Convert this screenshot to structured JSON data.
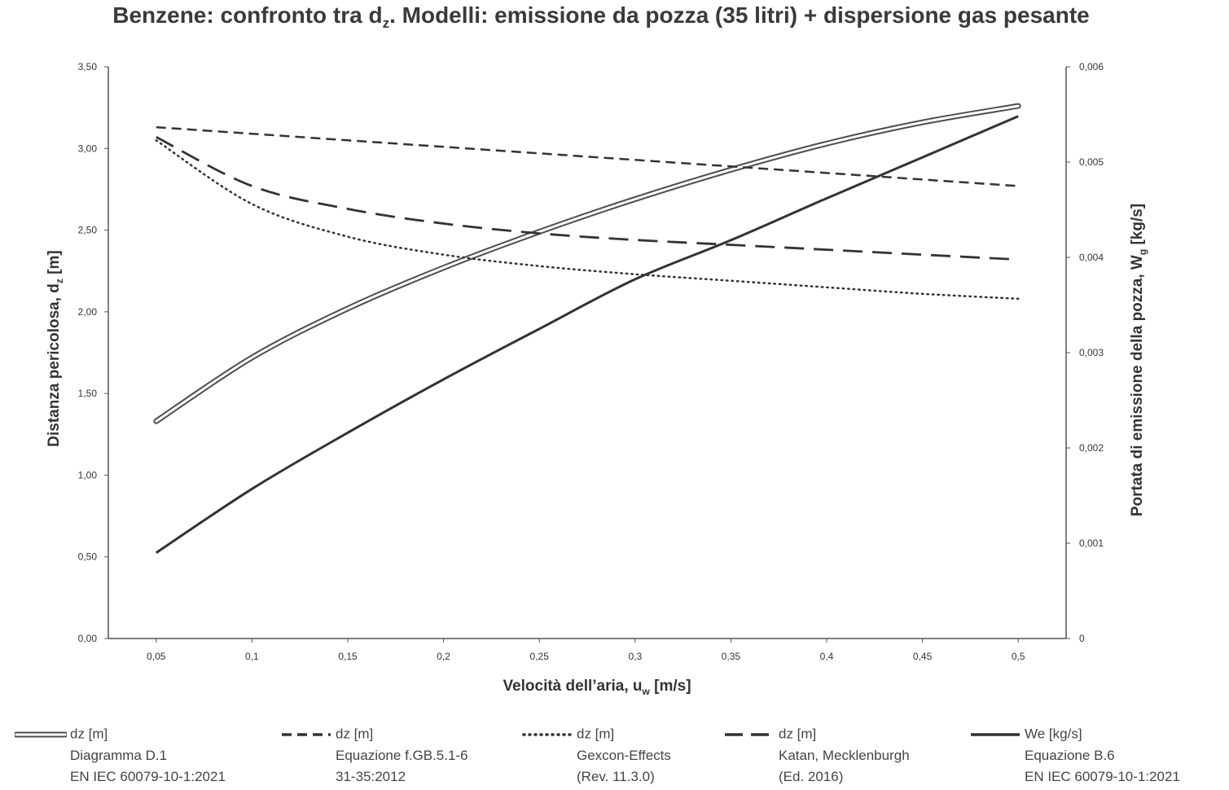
{
  "chart_data": {
    "type": "line",
    "title": {
      "pre": "Benzene: confronto tra d",
      "sub": "z",
      "post": ". Modelli: emissione da pozza (35 litri) + dispersione gas pesante"
    },
    "xlabel": {
      "pre": "Velocità dell’aria, u",
      "sub": "w",
      "post": " [m/s]"
    },
    "ylabel_left": {
      "pre": "Distanza pericolosa, d",
      "sub": "z",
      "post": " [m]"
    },
    "ylabel_right": {
      "pre": "Portata di emissione della pozza, W",
      "sub": "g",
      "post": " [kg/s]"
    },
    "x": [
      0.05,
      0.1,
      0.15,
      0.2,
      0.25,
      0.3,
      0.35,
      0.4,
      0.45,
      0.5
    ],
    "x_tick_labels": [
      "0,05",
      "0,1",
      "0,15",
      "0,2",
      "0,25",
      "0,3",
      "0,35",
      "0,4",
      "0,45",
      "0,5"
    ],
    "ylim_left": [
      0,
      3.5
    ],
    "y_left_ticks": [
      0,
      0.5,
      1,
      1.5,
      2,
      2.5,
      3,
      3.5
    ],
    "y_left_tick_labels": [
      "0,00",
      "0,50",
      "1,00",
      "1,50",
      "2,00",
      "2,50",
      "3,00",
      "3,50"
    ],
    "ylim_right": [
      0,
      0.006
    ],
    "y_right_ticks": [
      0,
      0.001,
      0.002,
      0.003,
      0.004,
      0.005,
      0.006
    ],
    "y_right_tick_labels": [
      "0",
      "0,001",
      "0,002",
      "0,003",
      "0,004",
      "0,005",
      "0,006"
    ],
    "grid": false,
    "legend_position": "bottom",
    "series": [
      {
        "name": "dz [m]",
        "lines": [
          "Diagramma D.1",
          "EN IEC 60079-10-1:2021"
        ],
        "axis": "left",
        "style": "double",
        "values": [
          1.33,
          1.72,
          2.02,
          2.27,
          2.49,
          2.69,
          2.87,
          3.03,
          3.16,
          3.26
        ]
      },
      {
        "name": "dz [m]",
        "lines": [
          "Equazione f.GB.5.1-6",
          "31-35:2012"
        ],
        "axis": "left",
        "style": "dashed",
        "values": [
          3.13,
          3.09,
          3.05,
          3.01,
          2.97,
          2.93,
          2.89,
          2.85,
          2.81,
          2.77
        ]
      },
      {
        "name": "dz [m]",
        "lines": [
          "Gexcon-Effects",
          "(Rev. 11.3.0)"
        ],
        "axis": "left",
        "style": "dotted",
        "values": [
          3.05,
          2.66,
          2.46,
          2.35,
          2.28,
          2.23,
          2.19,
          2.15,
          2.11,
          2.08
        ]
      },
      {
        "name": "dz [m]",
        "lines": [
          "Katan, Mecklenburgh",
          "(Ed. 2016)"
        ],
        "axis": "left",
        "style": "longdash",
        "values": [
          3.07,
          2.77,
          2.63,
          2.54,
          2.48,
          2.44,
          2.41,
          2.38,
          2.35,
          2.32
        ]
      },
      {
        "name": "We [kg/s]",
        "lines": [
          "Equazione B.6",
          "EN IEC 60079-10-1:2021"
        ],
        "axis": "right",
        "style": "solid",
        "values": [
          0.0009,
          0.00157,
          0.00216,
          0.00272,
          0.00325,
          0.00377,
          0.00418,
          0.00462,
          0.00505,
          0.00548
        ]
      }
    ]
  }
}
